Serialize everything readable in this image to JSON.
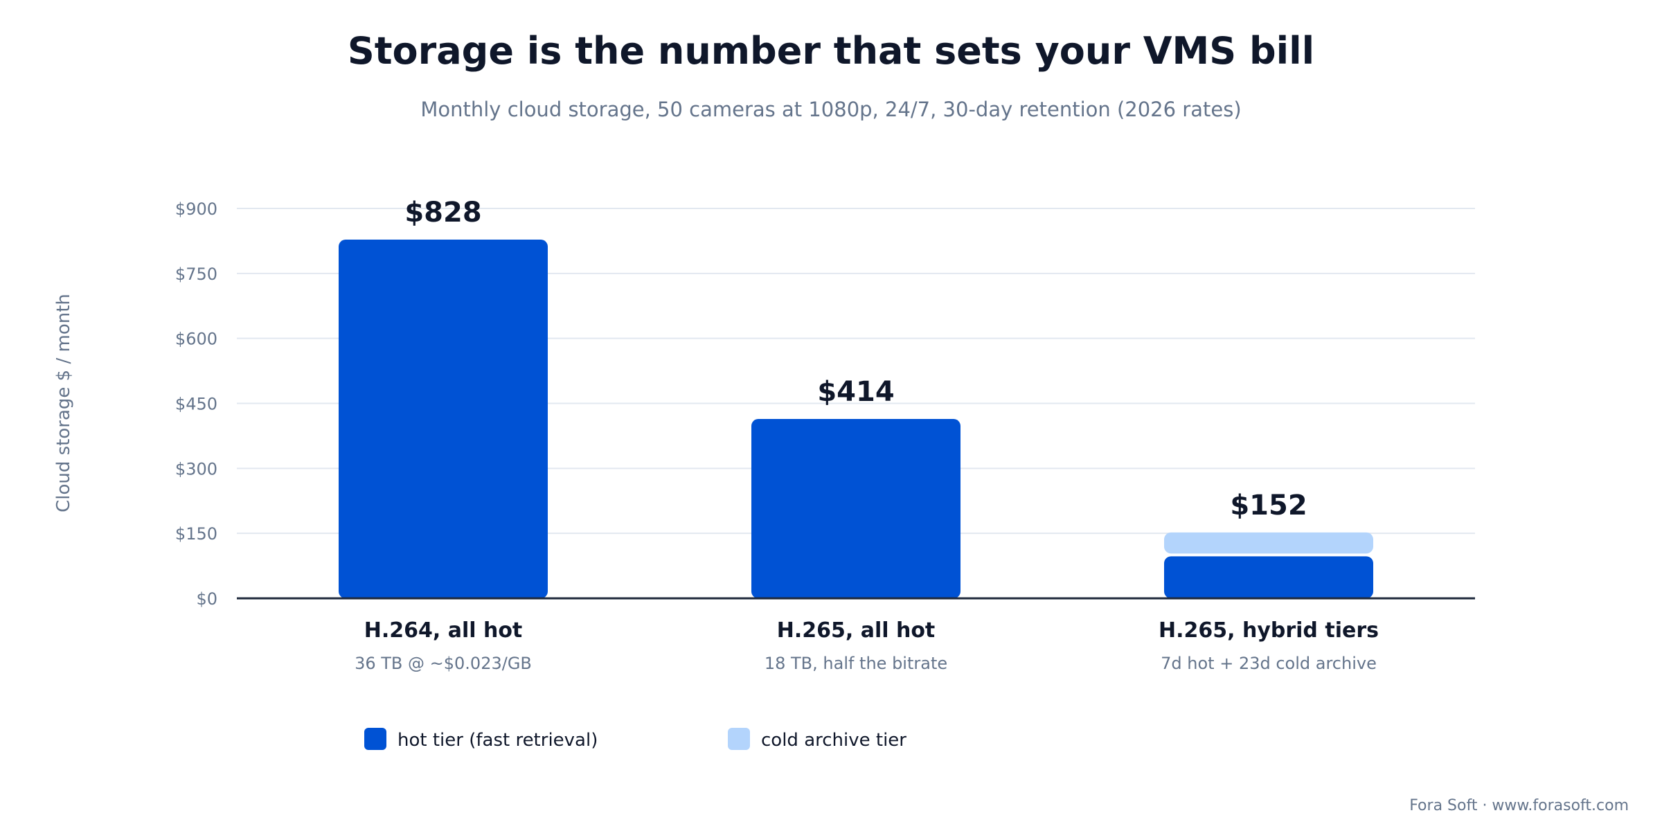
{
  "chart_data": {
    "type": "bar",
    "stacked": true,
    "title": "Storage is the number that sets your VMS bill",
    "subtitle": "Monthly cloud storage, 50 cameras at 1080p, 24/7, 30-day retention (2026 rates)",
    "ylabel": "Cloud storage $ / month",
    "ylim": [
      0,
      900
    ],
    "yticks": [
      0,
      150,
      300,
      450,
      600,
      750,
      900
    ],
    "ytick_labels": [
      "$0",
      "$150",
      "$300",
      "$450",
      "$600",
      "$750",
      "$900"
    ],
    "grid": true,
    "legend_position": "bottom-left",
    "categories": [
      "H.264, all hot",
      "H.265, all hot",
      "H.265, hybrid tiers"
    ],
    "category_subtitles": [
      "36 TB @ ~$0.023/GB",
      "18 TB, half the bitrate",
      "7d hot + 23d cold archive"
    ],
    "series": [
      {
        "name": "hot tier (fast retrieval)",
        "values": [
          828,
          414,
          97
        ],
        "color": "#0052d4"
      },
      {
        "name": "cold archive tier",
        "values": [
          0,
          0,
          55
        ],
        "color": "#b3d4fc"
      }
    ],
    "totals": [
      828,
      414,
      152
    ],
    "data_labels": [
      "$828",
      "$414",
      "$152"
    ]
  },
  "credit": "Fora Soft · www.forasoft.com",
  "colors": {
    "grid": "#e2e8f0",
    "axis": "#1e293b"
  }
}
